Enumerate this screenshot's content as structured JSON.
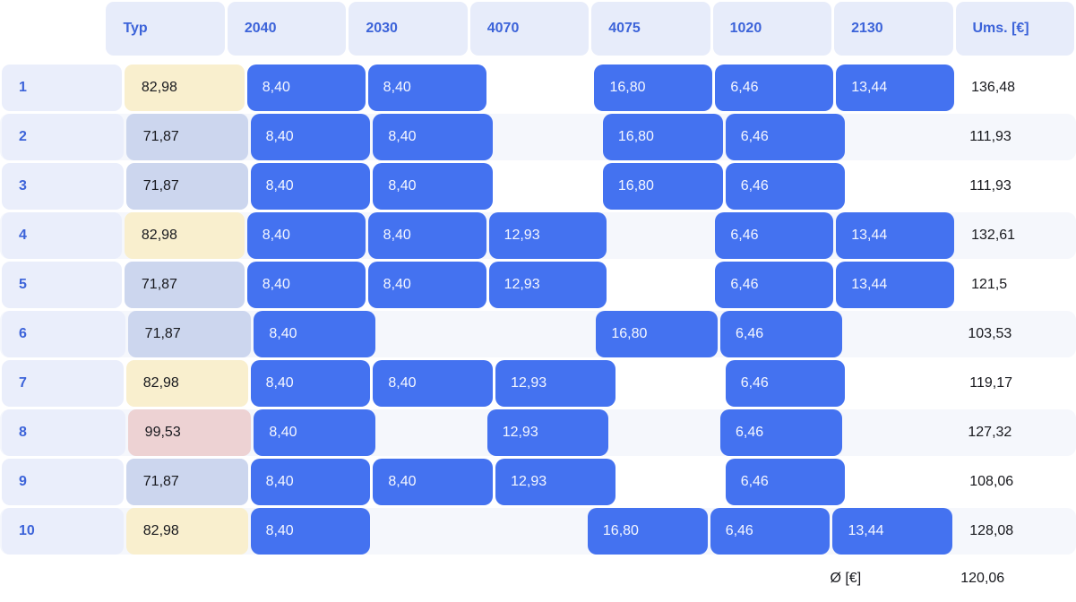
{
  "table": {
    "columns": [
      "",
      "Typ",
      "2040",
      "2030",
      "4070",
      "4075",
      "1020",
      "2130",
      "Ums. [€]"
    ],
    "rows": [
      {
        "num": "1",
        "typ": "82,98",
        "typ_style": "yellow",
        "values": [
          "8,40",
          "8,40",
          "",
          "16,80",
          "6,46",
          "13,44"
        ],
        "total": "136,48"
      },
      {
        "num": "2",
        "typ": "71,87",
        "typ_style": "blue",
        "values": [
          "8,40",
          "8,40",
          "",
          "16,80",
          "6,46",
          ""
        ],
        "total": "111,93"
      },
      {
        "num": "3",
        "typ": "71,87",
        "typ_style": "blue",
        "values": [
          "8,40",
          "8,40",
          "",
          "16,80",
          "6,46",
          ""
        ],
        "total": "111,93"
      },
      {
        "num": "4",
        "typ": "82,98",
        "typ_style": "yellow",
        "values": [
          "8,40",
          "8,40",
          "12,93",
          "",
          "6,46",
          "13,44"
        ],
        "total": "132,61"
      },
      {
        "num": "5",
        "typ": "71,87",
        "typ_style": "blue",
        "values": [
          "8,40",
          "8,40",
          "12,93",
          "",
          "6,46",
          "13,44"
        ],
        "total": "121,5"
      },
      {
        "num": "6",
        "typ": "71,87",
        "typ_style": "blue",
        "values": [
          "8,40",
          "",
          "",
          "16,80",
          "6,46",
          ""
        ],
        "total": "103,53"
      },
      {
        "num": "7",
        "typ": "82,98",
        "typ_style": "yellow",
        "values": [
          "8,40",
          "8,40",
          "12,93",
          "",
          "6,46",
          ""
        ],
        "total": "119,17"
      },
      {
        "num": "8",
        "typ": "99,53",
        "typ_style": "pink",
        "values": [
          "8,40",
          "",
          "12,93",
          "",
          "6,46",
          ""
        ],
        "total": "127,32"
      },
      {
        "num": "9",
        "typ": "71,87",
        "typ_style": "blue",
        "values": [
          "8,40",
          "8,40",
          "12,93",
          "",
          "6,46",
          ""
        ],
        "total": "108,06"
      },
      {
        "num": "10",
        "typ": "82,98",
        "typ_style": "yellow",
        "values": [
          "8,40",
          "",
          "",
          "16,80",
          "6,46",
          "13,44"
        ],
        "total": "128,08"
      }
    ],
    "footer": {
      "label": "Ø [€]",
      "value": "120,06"
    }
  },
  "colors": {
    "header-bg": "#e7ecfa",
    "header-text": "#3c63d9",
    "num-bg": "#eaeefb",
    "pill-bg": "#4472f0",
    "pill-text": "#f5f7ff",
    "typ-yellow": "#f9efce",
    "typ-blue": "#ccd6ee",
    "typ-pink": "#edd2d3",
    "band": "#f5f7fc",
    "text-dark": "#17181d"
  }
}
